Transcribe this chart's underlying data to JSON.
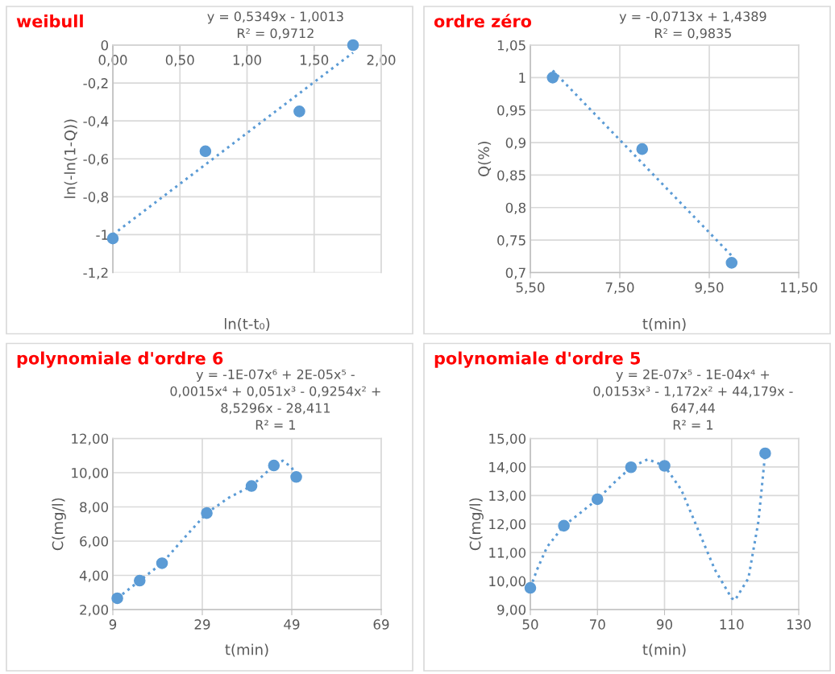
{
  "chart_data": [
    {
      "type": "scatter",
      "title": "weibull",
      "xlabel": "ln(t-t₀)",
      "ylabel": "ln(-ln(1-Q))",
      "annotations": [
        "y = 0,5349x - 1,0013",
        "R² = 0,9712"
      ],
      "xlim": [
        0,
        2
      ],
      "xticks": [
        {
          "value": 0,
          "label": "0,00"
        },
        {
          "value": 0.5,
          "label": "0,50"
        },
        {
          "value": 1,
          "label": "1,00"
        },
        {
          "value": 1.5,
          "label": "1,50"
        },
        {
          "value": 2,
          "label": "2,00"
        }
      ],
      "ylim": [
        -1.2,
        0
      ],
      "yticks": [
        {
          "value": -1.2,
          "label": "-1,2"
        },
        -1,
        {
          "value": -0.8,
          "label": "-0,8"
        },
        {
          "value": -0.6,
          "label": "-0,6"
        },
        {
          "value": -0.4,
          "label": "-0,4"
        },
        {
          "value": -0.2,
          "label": "-0,2"
        },
        0
      ],
      "grid": true,
      "legend": false,
      "series": [
        {
          "marker": "circle",
          "color": "#5b9bd5",
          "x": [
            0,
            0.69,
            1.39,
            1.79
          ],
          "values": [
            -1.02,
            -0.56,
            -0.35,
            0
          ]
        },
        {
          "type": "line",
          "line_style": "dotted",
          "marker": "none",
          "color": "#5b9bd5",
          "x": [
            0,
            1.79
          ],
          "values": [
            -1.0,
            -0.04
          ]
        }
      ]
    },
    {
      "type": "scatter",
      "title": "ordre zéro",
      "xlabel": "t(min)",
      "ylabel": "Q(%)",
      "annotations": [
        "y = -0,0713x + 1,4389",
        "R² = 0,9835"
      ],
      "xlim": [
        5.5,
        11.5
      ],
      "xticks": [
        {
          "value": 5.5,
          "label": "5,50"
        },
        {
          "value": 7.5,
          "label": "7,50"
        },
        {
          "value": 9.5,
          "label": "9,50"
        },
        {
          "value": 11.5,
          "label": "11,50"
        }
      ],
      "ylim": [
        0.7,
        1.05
      ],
      "yticks": [
        {
          "value": 0.7,
          "label": "0,7"
        },
        {
          "value": 0.75,
          "label": "0,75"
        },
        {
          "value": 0.8,
          "label": "0,8"
        },
        {
          "value": 0.85,
          "label": "0,85"
        },
        {
          "value": 0.9,
          "label": "0,9"
        },
        {
          "value": 0.95,
          "label": "0,95"
        },
        1,
        {
          "value": 1.05,
          "label": "1,05"
        }
      ],
      "grid": true,
      "legend": false,
      "series": [
        {
          "marker": "circle",
          "color": "#5b9bd5",
          "x": [
            6,
            8,
            10
          ],
          "values": [
            1.0,
            0.89,
            0.715
          ]
        },
        {
          "type": "line",
          "line_style": "dotted",
          "marker": "none",
          "color": "#5b9bd5",
          "x": [
            6,
            10
          ],
          "values": [
            1.011,
            0.726
          ]
        }
      ]
    },
    {
      "type": "scatter",
      "title": "polynomiale d'ordre 6",
      "xlabel": "t(min)",
      "ylabel": "C(mg/l)",
      "annotations": [
        "y = -1E-07x⁶ + 2E-05x⁵ -",
        "0,0015x⁴ + 0,051x³ - 0,9254x² +",
        "8,5296x - 28,411",
        "R² = 1"
      ],
      "xlim": [
        9,
        69
      ],
      "xticks": [
        9,
        29,
        49,
        69
      ],
      "ylim": [
        2,
        12
      ],
      "yticks": [
        {
          "value": 2,
          "label": "2,00"
        },
        {
          "value": 4,
          "label": "4,00"
        },
        {
          "value": 6,
          "label": "6,00"
        },
        {
          "value": 8,
          "label": "8,00"
        },
        {
          "value": 10,
          "label": "10,00"
        },
        {
          "value": 12,
          "label": "12,00"
        }
      ],
      "grid": true,
      "legend": false,
      "series": [
        {
          "marker": "circle",
          "color": "#5b9bd5",
          "x": [
            10,
            15,
            20,
            30,
            40,
            45,
            50
          ],
          "values": [
            2.66,
            3.69,
            4.71,
            7.64,
            9.22,
            10.42,
            9.75
          ]
        },
        {
          "type": "line",
          "line_style": "dotted",
          "marker": "none",
          "color": "#5b9bd5",
          "x": [
            10,
            15,
            20,
            25,
            30,
            35,
            40,
            45,
            47,
            49,
            50
          ],
          "values": [
            2.66,
            3.69,
            4.71,
            6.2,
            7.64,
            8.55,
            9.22,
            10.42,
            10.7,
            10.3,
            9.75
          ]
        }
      ]
    },
    {
      "type": "scatter",
      "title": "polynomiale d'ordre 5",
      "xlabel": "t(min)",
      "ylabel": "C(mg/l)",
      "annotations": [
        "y = 2E-07x⁵ - 1E-04x⁴ +",
        "0,0153x³ - 1,172x² + 44,179x -",
        "647,44",
        "R² = 1"
      ],
      "xlim": [
        50,
        130
      ],
      "xticks": [
        50,
        70,
        90,
        110,
        130
      ],
      "ylim": [
        9,
        15
      ],
      "yticks": [
        {
          "value": 9,
          "label": "9,00"
        },
        {
          "value": 10,
          "label": "10,00"
        },
        {
          "value": 11,
          "label": "11,00"
        },
        {
          "value": 12,
          "label": "12,00"
        },
        {
          "value": 13,
          "label": "13,00"
        },
        {
          "value": 14,
          "label": "14,00"
        },
        {
          "value": 15,
          "label": "15,00"
        }
      ],
      "grid": true,
      "legend": false,
      "series": [
        {
          "marker": "circle",
          "color": "#5b9bd5",
          "x": [
            50,
            60,
            70,
            80,
            90,
            120
          ],
          "values": [
            9.76,
            11.94,
            12.87,
            13.99,
            14.04,
            14.48
          ]
        },
        {
          "type": "line",
          "line_style": "dotted",
          "marker": "none",
          "color": "#5b9bd5",
          "x": [
            50,
            52,
            55,
            60,
            65,
            70,
            75,
            80,
            85,
            90,
            95,
            100,
            105,
            110,
            111,
            115,
            118,
            120
          ],
          "values": [
            9.76,
            10.4,
            11.2,
            11.94,
            12.4,
            12.87,
            13.45,
            13.99,
            14.27,
            14.04,
            13.2,
            11.8,
            10.4,
            9.4,
            9.33,
            10.1,
            12.1,
            14.48
          ]
        }
      ]
    }
  ]
}
